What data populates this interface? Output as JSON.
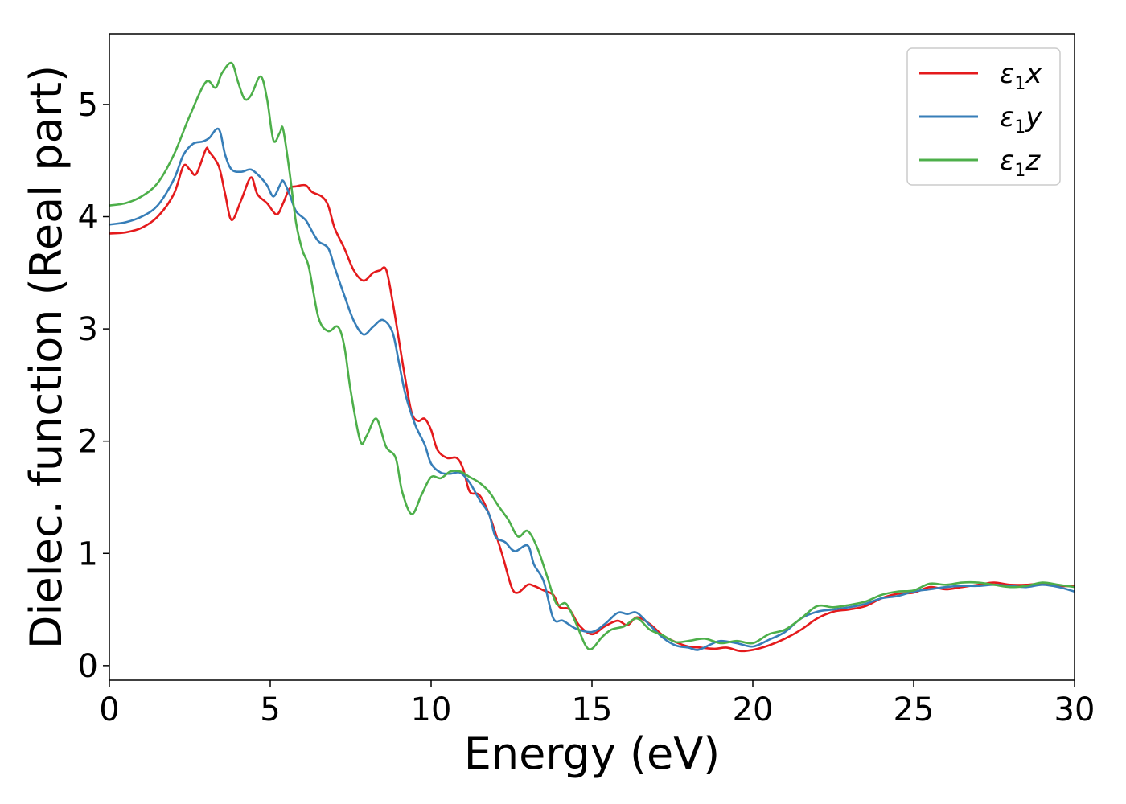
{
  "chart_data": {
    "type": "line",
    "xlabel": "Energy (eV)",
    "ylabel": "Dielec. function (Real part)",
    "xlim": [
      0,
      30
    ],
    "ylim": [
      -0.13,
      5.63
    ],
    "xticks": [
      0,
      5,
      10,
      15,
      20,
      25,
      30
    ],
    "yticks": [
      0,
      1,
      2,
      3,
      4,
      5
    ],
    "grid": false,
    "legend_position": "top-right",
    "series": [
      {
        "name": "ε1x",
        "label_base": "ε",
        "label_sub": "1",
        "label_var": "x",
        "color": "#e41a1c",
        "points": [
          [
            0,
            3.85
          ],
          [
            0.5,
            3.86
          ],
          [
            1,
            3.9
          ],
          [
            1.5,
            4.0
          ],
          [
            2,
            4.2
          ],
          [
            2.3,
            4.45
          ],
          [
            2.5,
            4.42
          ],
          [
            2.7,
            4.38
          ],
          [
            3,
            4.6
          ],
          [
            3.1,
            4.58
          ],
          [
            3.4,
            4.45
          ],
          [
            3.6,
            4.2
          ],
          [
            3.8,
            3.97
          ],
          [
            4.1,
            4.15
          ],
          [
            4.4,
            4.35
          ],
          [
            4.6,
            4.2
          ],
          [
            4.9,
            4.12
          ],
          [
            5.2,
            4.02
          ],
          [
            5.4,
            4.12
          ],
          [
            5.6,
            4.25
          ],
          [
            5.8,
            4.27
          ],
          [
            6.1,
            4.28
          ],
          [
            6.3,
            4.22
          ],
          [
            6.6,
            4.18
          ],
          [
            6.8,
            4.1
          ],
          [
            7,
            3.9
          ],
          [
            7.3,
            3.72
          ],
          [
            7.6,
            3.52
          ],
          [
            7.9,
            3.43
          ],
          [
            8.2,
            3.5
          ],
          [
            8.4,
            3.52
          ],
          [
            8.6,
            3.53
          ],
          [
            8.8,
            3.25
          ],
          [
            9.0,
            2.9
          ],
          [
            9.2,
            2.55
          ],
          [
            9.4,
            2.25
          ],
          [
            9.6,
            2.18
          ],
          [
            9.8,
            2.2
          ],
          [
            10.0,
            2.1
          ],
          [
            10.2,
            1.92
          ],
          [
            10.5,
            1.85
          ],
          [
            10.8,
            1.85
          ],
          [
            11.0,
            1.75
          ],
          [
            11.2,
            1.55
          ],
          [
            11.5,
            1.52
          ],
          [
            11.8,
            1.35
          ],
          [
            12.2,
            1.0
          ],
          [
            12.5,
            0.7
          ],
          [
            12.7,
            0.65
          ],
          [
            13.0,
            0.72
          ],
          [
            13.2,
            0.71
          ],
          [
            13.5,
            0.67
          ],
          [
            13.8,
            0.63
          ],
          [
            14.0,
            0.52
          ],
          [
            14.3,
            0.5
          ],
          [
            14.6,
            0.36
          ],
          [
            15.0,
            0.28
          ],
          [
            15.4,
            0.35
          ],
          [
            15.8,
            0.4
          ],
          [
            16.1,
            0.36
          ],
          [
            16.4,
            0.43
          ],
          [
            16.8,
            0.37
          ],
          [
            17.2,
            0.27
          ],
          [
            17.6,
            0.21
          ],
          [
            18.0,
            0.17
          ],
          [
            18.4,
            0.16
          ],
          [
            18.8,
            0.15
          ],
          [
            19.2,
            0.16
          ],
          [
            19.6,
            0.13
          ],
          [
            20.0,
            0.14
          ],
          [
            20.5,
            0.18
          ],
          [
            21.0,
            0.24
          ],
          [
            21.5,
            0.32
          ],
          [
            22.0,
            0.42
          ],
          [
            22.5,
            0.48
          ],
          [
            23.0,
            0.5
          ],
          [
            23.5,
            0.53
          ],
          [
            24.0,
            0.6
          ],
          [
            24.5,
            0.64
          ],
          [
            25.0,
            0.65
          ],
          [
            25.5,
            0.7
          ],
          [
            26.0,
            0.68
          ],
          [
            26.5,
            0.7
          ],
          [
            27.0,
            0.72
          ],
          [
            27.5,
            0.74
          ],
          [
            28.0,
            0.72
          ],
          [
            28.5,
            0.72
          ],
          [
            29.0,
            0.73
          ],
          [
            29.5,
            0.71
          ],
          [
            30.0,
            0.71
          ]
        ]
      },
      {
        "name": "ε1y",
        "label_base": "ε",
        "label_sub": "1",
        "label_var": "y",
        "color": "#377eb8",
        "points": [
          [
            0,
            3.93
          ],
          [
            0.5,
            3.95
          ],
          [
            1,
            4.0
          ],
          [
            1.5,
            4.1
          ],
          [
            2,
            4.33
          ],
          [
            2.3,
            4.55
          ],
          [
            2.6,
            4.65
          ],
          [
            2.9,
            4.67
          ],
          [
            3.1,
            4.7
          ],
          [
            3.4,
            4.78
          ],
          [
            3.6,
            4.55
          ],
          [
            3.8,
            4.42
          ],
          [
            4.1,
            4.4
          ],
          [
            4.4,
            4.42
          ],
          [
            4.7,
            4.35
          ],
          [
            4.9,
            4.28
          ],
          [
            5.1,
            4.18
          ],
          [
            5.3,
            4.28
          ],
          [
            5.4,
            4.32
          ],
          [
            5.6,
            4.2
          ],
          [
            5.8,
            4.05
          ],
          [
            6.1,
            3.97
          ],
          [
            6.3,
            3.87
          ],
          [
            6.5,
            3.78
          ],
          [
            6.8,
            3.72
          ],
          [
            7.0,
            3.55
          ],
          [
            7.3,
            3.3
          ],
          [
            7.6,
            3.07
          ],
          [
            7.9,
            2.95
          ],
          [
            8.2,
            3.02
          ],
          [
            8.5,
            3.08
          ],
          [
            8.8,
            2.97
          ],
          [
            9.0,
            2.7
          ],
          [
            9.2,
            2.42
          ],
          [
            9.5,
            2.15
          ],
          [
            9.8,
            1.97
          ],
          [
            10.0,
            1.8
          ],
          [
            10.3,
            1.72
          ],
          [
            10.6,
            1.71
          ],
          [
            10.9,
            1.72
          ],
          [
            11.2,
            1.63
          ],
          [
            11.5,
            1.48
          ],
          [
            11.8,
            1.35
          ],
          [
            12.0,
            1.15
          ],
          [
            12.3,
            1.1
          ],
          [
            12.6,
            1.02
          ],
          [
            13.0,
            1.07
          ],
          [
            13.2,
            0.9
          ],
          [
            13.5,
            0.75
          ],
          [
            13.8,
            0.42
          ],
          [
            14.1,
            0.4
          ],
          [
            14.5,
            0.33
          ],
          [
            15.0,
            0.3
          ],
          [
            15.4,
            0.37
          ],
          [
            15.8,
            0.47
          ],
          [
            16.1,
            0.46
          ],
          [
            16.4,
            0.47
          ],
          [
            16.8,
            0.36
          ],
          [
            17.2,
            0.25
          ],
          [
            17.6,
            0.18
          ],
          [
            18.0,
            0.16
          ],
          [
            18.3,
            0.14
          ],
          [
            18.7,
            0.19
          ],
          [
            19.0,
            0.22
          ],
          [
            19.5,
            0.2
          ],
          [
            20.0,
            0.17
          ],
          [
            20.5,
            0.23
          ],
          [
            21.0,
            0.3
          ],
          [
            21.5,
            0.42
          ],
          [
            22.0,
            0.48
          ],
          [
            22.5,
            0.5
          ],
          [
            23.0,
            0.52
          ],
          [
            23.5,
            0.55
          ],
          [
            24.0,
            0.6
          ],
          [
            24.5,
            0.62
          ],
          [
            25.0,
            0.66
          ],
          [
            25.5,
            0.68
          ],
          [
            26.0,
            0.7
          ],
          [
            26.5,
            0.71
          ],
          [
            27.0,
            0.71
          ],
          [
            27.5,
            0.72
          ],
          [
            28.0,
            0.71
          ],
          [
            28.5,
            0.7
          ],
          [
            29.0,
            0.72
          ],
          [
            29.5,
            0.7
          ],
          [
            30.0,
            0.66
          ]
        ]
      },
      {
        "name": "ε1z",
        "label_base": "ε",
        "label_sub": "1",
        "label_var": "z",
        "color": "#4daf4a",
        "points": [
          [
            0,
            4.1
          ],
          [
            0.5,
            4.12
          ],
          [
            1,
            4.18
          ],
          [
            1.5,
            4.3
          ],
          [
            2,
            4.55
          ],
          [
            2.5,
            4.9
          ],
          [
            3.0,
            5.2
          ],
          [
            3.3,
            5.15
          ],
          [
            3.5,
            5.28
          ],
          [
            3.8,
            5.37
          ],
          [
            4.0,
            5.2
          ],
          [
            4.2,
            5.05
          ],
          [
            4.4,
            5.08
          ],
          [
            4.7,
            5.25
          ],
          [
            4.9,
            5.05
          ],
          [
            5.1,
            4.68
          ],
          [
            5.3,
            4.75
          ],
          [
            5.4,
            4.78
          ],
          [
            5.6,
            4.4
          ],
          [
            5.8,
            3.95
          ],
          [
            6.0,
            3.7
          ],
          [
            6.2,
            3.55
          ],
          [
            6.5,
            3.1
          ],
          [
            6.8,
            2.98
          ],
          [
            7.1,
            3.02
          ],
          [
            7.3,
            2.85
          ],
          [
            7.5,
            2.45
          ],
          [
            7.8,
            2.0
          ],
          [
            8.0,
            2.05
          ],
          [
            8.3,
            2.2
          ],
          [
            8.6,
            1.95
          ],
          [
            8.9,
            1.85
          ],
          [
            9.1,
            1.55
          ],
          [
            9.4,
            1.35
          ],
          [
            9.7,
            1.52
          ],
          [
            10.0,
            1.68
          ],
          [
            10.3,
            1.67
          ],
          [
            10.6,
            1.73
          ],
          [
            10.9,
            1.73
          ],
          [
            11.2,
            1.68
          ],
          [
            11.5,
            1.63
          ],
          [
            11.8,
            1.55
          ],
          [
            12.1,
            1.42
          ],
          [
            12.4,
            1.3
          ],
          [
            12.7,
            1.15
          ],
          [
            13.0,
            1.2
          ],
          [
            13.3,
            1.05
          ],
          [
            13.6,
            0.8
          ],
          [
            13.9,
            0.55
          ],
          [
            14.2,
            0.55
          ],
          [
            14.5,
            0.38
          ],
          [
            14.8,
            0.18
          ],
          [
            15.0,
            0.15
          ],
          [
            15.3,
            0.25
          ],
          [
            15.6,
            0.32
          ],
          [
            16.0,
            0.35
          ],
          [
            16.4,
            0.42
          ],
          [
            16.8,
            0.32
          ],
          [
            17.2,
            0.27
          ],
          [
            17.6,
            0.21
          ],
          [
            18.0,
            0.22
          ],
          [
            18.5,
            0.24
          ],
          [
            19.0,
            0.2
          ],
          [
            19.5,
            0.22
          ],
          [
            20.0,
            0.2
          ],
          [
            20.5,
            0.28
          ],
          [
            21.0,
            0.32
          ],
          [
            21.5,
            0.42
          ],
          [
            22.0,
            0.53
          ],
          [
            22.5,
            0.52
          ],
          [
            23.0,
            0.54
          ],
          [
            23.5,
            0.57
          ],
          [
            24.0,
            0.63
          ],
          [
            24.5,
            0.66
          ],
          [
            25.0,
            0.67
          ],
          [
            25.5,
            0.73
          ],
          [
            26.0,
            0.72
          ],
          [
            26.5,
            0.74
          ],
          [
            27.0,
            0.74
          ],
          [
            27.5,
            0.72
          ],
          [
            28.0,
            0.7
          ],
          [
            28.5,
            0.71
          ],
          [
            29.0,
            0.74
          ],
          [
            29.5,
            0.72
          ],
          [
            30.0,
            0.7
          ]
        ]
      }
    ]
  }
}
